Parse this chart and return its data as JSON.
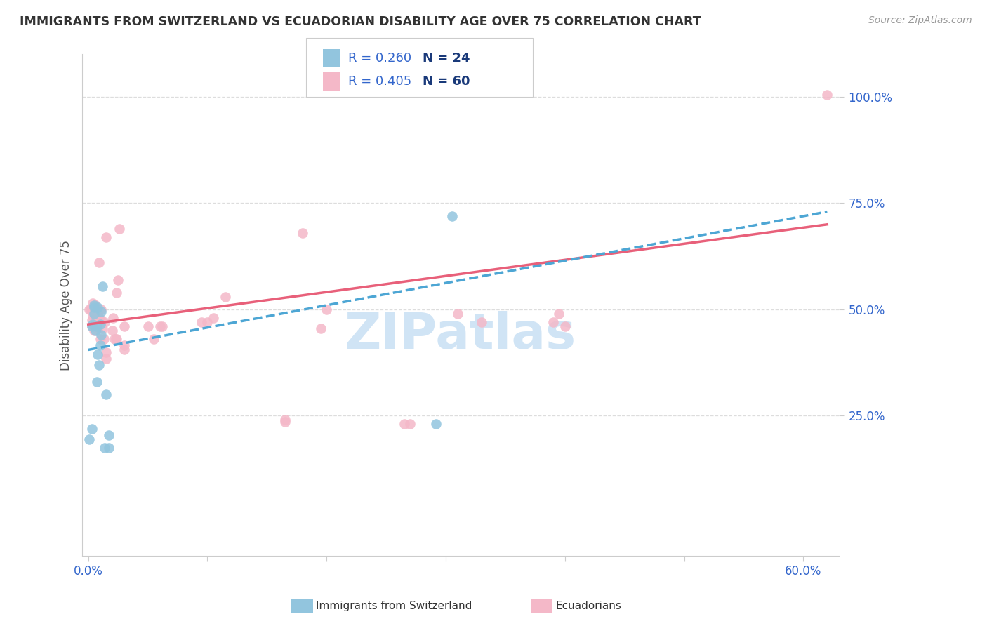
{
  "title": "IMMIGRANTS FROM SWITZERLAND VS ECUADORIAN DISABILITY AGE OVER 75 CORRELATION CHART",
  "source": "Source: ZipAtlas.com",
  "ylabel_label": "Disability Age Over 75",
  "y_tick_labels": [
    "25.0%",
    "50.0%",
    "75.0%",
    "100.0%"
  ],
  "y_ticks": [
    25.0,
    50.0,
    75.0,
    100.0
  ],
  "xlim": [
    -0.5,
    63.0
  ],
  "ylim": [
    -8.0,
    110.0
  ],
  "legend_r1": "R = 0.260",
  "legend_n1": "N = 24",
  "legend_r2": "R = 0.405",
  "legend_n2": "N = 60",
  "blue_color": "#92c5de",
  "pink_color": "#f4b8c8",
  "blue_line_color": "#4da6d4",
  "pink_line_color": "#e8607a",
  "title_color": "#333333",
  "source_color": "#999999",
  "axis_label_color": "#555555",
  "tick_label_color": "#3366cc",
  "grid_color": "#dddddd",
  "watermark_color": "#d0e4f5",
  "blue_scatter_x": [
    0.1,
    0.3,
    0.3,
    0.4,
    0.5,
    0.5,
    0.5,
    0.6,
    0.7,
    0.7,
    0.8,
    0.8,
    0.9,
    1.0,
    1.0,
    1.1,
    1.1,
    1.2,
    1.4,
    1.5,
    1.7,
    1.7,
    29.2,
    30.5
  ],
  "blue_scatter_y": [
    19.5,
    46.0,
    22.0,
    46.5,
    49.0,
    50.5,
    51.0,
    45.0,
    46.0,
    33.0,
    39.5,
    50.5,
    37.0,
    41.5,
    46.5,
    44.0,
    49.5,
    55.5,
    17.5,
    30.0,
    17.5,
    20.5,
    23.0,
    72.0
  ],
  "pink_scatter_x": [
    0.1,
    0.2,
    0.3,
    0.3,
    0.3,
    0.4,
    0.4,
    0.4,
    0.4,
    0.5,
    0.5,
    0.6,
    0.6,
    0.7,
    0.7,
    0.8,
    0.8,
    0.9,
    0.9,
    1.0,
    1.1,
    1.1,
    1.2,
    1.3,
    1.4,
    1.5,
    1.5,
    1.5,
    2.0,
    2.1,
    2.2,
    2.3,
    2.4,
    2.4,
    2.5,
    2.6,
    3.0,
    3.0,
    3.0,
    5.0,
    5.5,
    6.0,
    6.2,
    9.5,
    10.0,
    10.5,
    11.5,
    16.5,
    16.5,
    18.0,
    19.5,
    20.0,
    26.5,
    27.0,
    31.0,
    33.0,
    39.0,
    39.5,
    40.0,
    62.0
  ],
  "pink_scatter_y": [
    50.0,
    50.0,
    47.5,
    50.0,
    46.0,
    48.5,
    49.5,
    50.5,
    51.5,
    45.0,
    47.0,
    48.0,
    51.0,
    46.0,
    50.0,
    45.5,
    49.0,
    48.0,
    61.0,
    43.0,
    47.5,
    50.0,
    45.5,
    43.0,
    47.0,
    38.5,
    40.0,
    67.0,
    45.0,
    48.0,
    43.0,
    43.0,
    43.0,
    54.0,
    57.0,
    69.0,
    40.5,
    41.5,
    46.0,
    46.0,
    43.0,
    46.0,
    46.0,
    47.0,
    47.0,
    48.0,
    53.0,
    23.5,
    24.0,
    68.0,
    45.5,
    50.0,
    23.0,
    23.0,
    49.0,
    47.0,
    47.0,
    49.0,
    46.0,
    100.5
  ],
  "blue_trend_x": [
    0.0,
    62.0
  ],
  "blue_trend_y": [
    40.5,
    73.0
  ],
  "pink_trend_x": [
    0.0,
    62.0
  ],
  "pink_trend_y": [
    46.5,
    70.0
  ]
}
